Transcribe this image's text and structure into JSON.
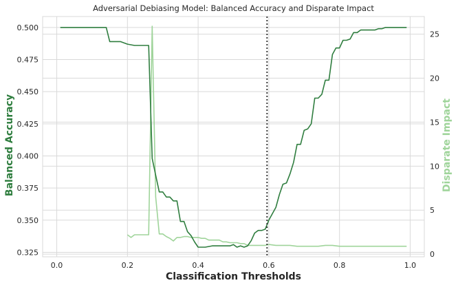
{
  "chart_data": {
    "type": "line",
    "title": "Adversarial Debiasing Model: Balanced Accuracy and Disparate Impact",
    "xlabel": "Classification Thresholds",
    "ylabel_left": "Balanced Accuracy",
    "ylabel_right": "Disparate Impact",
    "xlim": [
      -0.04,
      1.04
    ],
    "ylim_left": [
      0.3215,
      0.5085
    ],
    "ylim_right": [
      -0.3,
      27.0
    ],
    "x_ticks": [
      "0.0",
      "0.2",
      "0.4",
      "0.6",
      "0.8",
      "1.0"
    ],
    "x_tick_values": [
      0.0,
      0.2,
      0.4,
      0.6,
      0.8,
      1.0
    ],
    "y_left_ticks": [
      "0.325",
      "0.350",
      "0.375",
      "0.400",
      "0.425",
      "0.450",
      "0.475",
      "0.500"
    ],
    "y_left_tick_values": [
      0.325,
      0.35,
      0.375,
      0.4,
      0.425,
      0.45,
      0.475,
      0.5
    ],
    "y_right_ticks": [
      "0",
      "5",
      "10",
      "15",
      "20",
      "25"
    ],
    "y_right_tick_values": [
      0,
      5,
      10,
      15,
      20,
      25
    ],
    "grid": true,
    "colors": {
      "balanced_accuracy": "#2e7d3e",
      "disparate_impact": "#9fd49a",
      "threshold_line": "#262626"
    },
    "threshold_marker": 0.595,
    "series": [
      {
        "name": "Balanced Accuracy",
        "axis": "left",
        "x": [
          0.01,
          0.14,
          0.15,
          0.18,
          0.2,
          0.22,
          0.26,
          0.27,
          0.28,
          0.29,
          0.3,
          0.31,
          0.32,
          0.33,
          0.34,
          0.35,
          0.36,
          0.37,
          0.38,
          0.39,
          0.4,
          0.42,
          0.44,
          0.46,
          0.48,
          0.49,
          0.5,
          0.51,
          0.52,
          0.53,
          0.54,
          0.55,
          0.56,
          0.57,
          0.58,
          0.59,
          0.6,
          0.61,
          0.62,
          0.63,
          0.64,
          0.65,
          0.66,
          0.67,
          0.68,
          0.69,
          0.7,
          0.71,
          0.72,
          0.73,
          0.74,
          0.75,
          0.76,
          0.77,
          0.78,
          0.79,
          0.8,
          0.81,
          0.82,
          0.83,
          0.84,
          0.85,
          0.86,
          0.87,
          0.9,
          0.91,
          0.92,
          0.93,
          0.99
        ],
        "values": [
          0.5,
          0.5,
          0.489,
          0.489,
          0.487,
          0.486,
          0.486,
          0.398,
          0.385,
          0.372,
          0.372,
          0.368,
          0.368,
          0.365,
          0.365,
          0.349,
          0.349,
          0.341,
          0.338,
          0.333,
          0.329,
          0.329,
          0.33,
          0.33,
          0.33,
          0.33,
          0.331,
          0.329,
          0.33,
          0.329,
          0.33,
          0.334,
          0.34,
          0.342,
          0.342,
          0.343,
          0.35,
          0.355,
          0.36,
          0.37,
          0.378,
          0.379,
          0.386,
          0.395,
          0.409,
          0.409,
          0.42,
          0.421,
          0.425,
          0.445,
          0.445,
          0.448,
          0.459,
          0.459,
          0.479,
          0.484,
          0.484,
          0.49,
          0.49,
          0.491,
          0.496,
          0.496,
          0.498,
          0.498,
          0.498,
          0.499,
          0.499,
          0.5,
          0.5
        ]
      },
      {
        "name": "Disparate Impact",
        "axis": "right",
        "x": [
          0.2,
          0.21,
          0.22,
          0.23,
          0.25,
          0.26,
          0.27,
          0.28,
          0.29,
          0.3,
          0.31,
          0.32,
          0.33,
          0.34,
          0.35,
          0.36,
          0.37,
          0.38,
          0.39,
          0.4,
          0.41,
          0.42,
          0.43,
          0.44,
          0.45,
          0.46,
          0.47,
          0.48,
          0.49,
          0.5,
          0.51,
          0.52,
          0.53,
          0.54,
          0.55,
          0.56,
          0.57,
          0.58,
          0.59,
          0.6,
          0.62,
          0.64,
          0.66,
          0.68,
          0.7,
          0.72,
          0.74,
          0.76,
          0.78,
          0.8,
          0.82,
          0.84,
          0.86,
          0.88,
          0.9,
          0.92,
          0.94,
          0.96,
          0.99
        ],
        "values": [
          2.2,
          1.9,
          2.2,
          2.2,
          2.2,
          2.2,
          25.9,
          6.5,
          2.3,
          2.3,
          2.0,
          1.8,
          1.5,
          1.9,
          1.9,
          2.0,
          2.0,
          1.9,
          1.9,
          1.9,
          1.8,
          1.8,
          1.6,
          1.6,
          1.6,
          1.6,
          1.4,
          1.4,
          1.3,
          1.3,
          1.3,
          1.2,
          1.2,
          1.0,
          1.0,
          1.0,
          1.0,
          1.0,
          1.0,
          1.1,
          1.0,
          1.0,
          1.0,
          0.9,
          0.9,
          0.9,
          0.9,
          1.0,
          1.0,
          0.9,
          0.9,
          0.9,
          0.9,
          0.9,
          0.9,
          0.9,
          0.9,
          0.9,
          0.9
        ]
      }
    ]
  }
}
